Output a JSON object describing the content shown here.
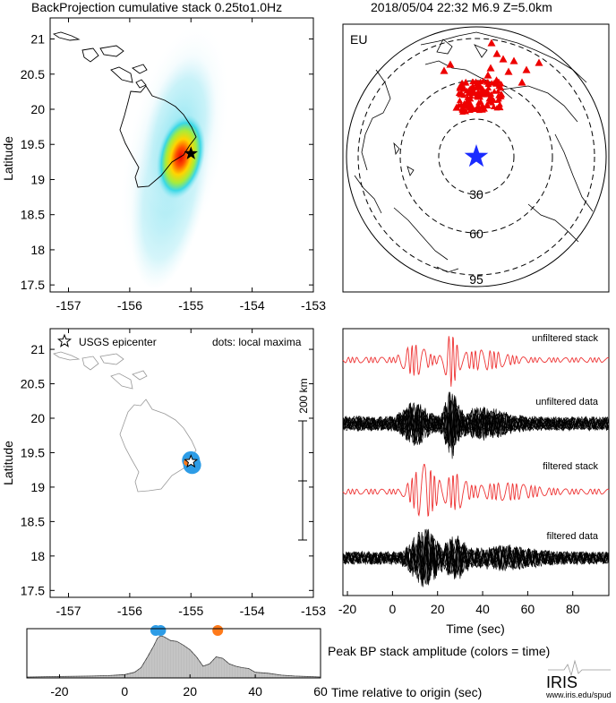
{
  "header": {
    "left_title": "BackProjection cumulative stack 0.25to1.0Hz",
    "right_title": "2018/05/04 22:32  M6.9  Z=5.0km"
  },
  "colors": {
    "star_red": "#000000",
    "star_blue": "#1a2bff",
    "stations": "#ee0000",
    "trace_red": "#ee3333",
    "trace_black": "#000000",
    "dot_blue": "#2d9ce6",
    "dot_orange": "#ff7a1a",
    "stack_fill": "#bdbdbd"
  },
  "top_map": {
    "ylabel": "Latitude",
    "x_ticks": [
      "-157",
      "-156",
      "-155",
      "-154",
      "-153"
    ],
    "y_ticks": [
      "21",
      "20.5",
      "20",
      "19.5",
      "19",
      "18.5",
      "18",
      "17.5"
    ],
    "xlim": [
      -157.3,
      -153.0
    ],
    "ylim": [
      17.4,
      21.3
    ],
    "epicenter": {
      "lon": -155.0,
      "lat": 19.37
    }
  },
  "globe": {
    "label": "EU",
    "ring_labels": [
      "30",
      "60",
      "95"
    ]
  },
  "bottom_map": {
    "ylabel": "Latitude",
    "legend_star": "USGS epicenter",
    "legend_dots": "dots: local maxima",
    "scale_label": "200 km",
    "x_ticks": [
      "-157",
      "-156",
      "-155",
      "-154",
      "-153"
    ],
    "y_ticks": [
      "21",
      "20.5",
      "20",
      "19.5",
      "19",
      "18.5",
      "18",
      "17.5"
    ],
    "xlim": [
      -157.3,
      -153.0
    ],
    "ylim": [
      17.4,
      21.3
    ],
    "epicenter": {
      "lon": -155.0,
      "lat": 19.37
    },
    "maxima": [
      {
        "lon": -155.0,
        "lat": 19.39,
        "color": "#2d9ce6"
      },
      {
        "lon": -154.98,
        "lat": 19.32,
        "color": "#2d9ce6"
      },
      {
        "lon": -155.06,
        "lat": 19.36,
        "color": "#ff7a1a"
      }
    ]
  },
  "traces": {
    "labels": [
      "unfiltered stack",
      "unfiltered data",
      "filtered stack",
      "filtered data"
    ],
    "x_ticks": [
      "-20",
      "0",
      "20",
      "40",
      "60",
      "80"
    ],
    "xlabel": "Time (sec)",
    "xlim": [
      -22,
      96
    ]
  },
  "chart_data": {
    "type": "area",
    "title": "Peak BP stack amplitude (colors = time)",
    "xlabel": "Time relative to origin (sec)",
    "xlim": [
      -30,
      60
    ],
    "x_ticks": [
      "-20",
      "0",
      "20",
      "40",
      "60"
    ],
    "x": [
      -30,
      -20,
      -10,
      -5,
      0,
      3,
      5,
      7,
      9,
      10,
      11,
      12,
      14,
      16,
      18,
      20,
      22,
      24,
      26,
      28,
      30,
      32,
      34,
      36,
      38,
      40,
      44,
      48,
      52,
      56,
      60
    ],
    "values": [
      0.02,
      0.03,
      0.04,
      0.05,
      0.07,
      0.12,
      0.22,
      0.45,
      0.7,
      0.85,
      0.9,
      0.88,
      0.8,
      0.78,
      0.7,
      0.6,
      0.45,
      0.25,
      0.3,
      0.45,
      0.42,
      0.3,
      0.25,
      0.22,
      0.2,
      0.12,
      0.1,
      0.06,
      0.04,
      0.03,
      0.02
    ],
    "peak_dots": [
      {
        "time": 9.5,
        "color": "#2d9ce6"
      },
      {
        "time": 11.0,
        "color": "#2d9ce6"
      },
      {
        "time": 28.5,
        "color": "#ff7a1a"
      }
    ]
  },
  "footer": {
    "logo": "IRIS",
    "url": "www.iris.edu/spud"
  }
}
